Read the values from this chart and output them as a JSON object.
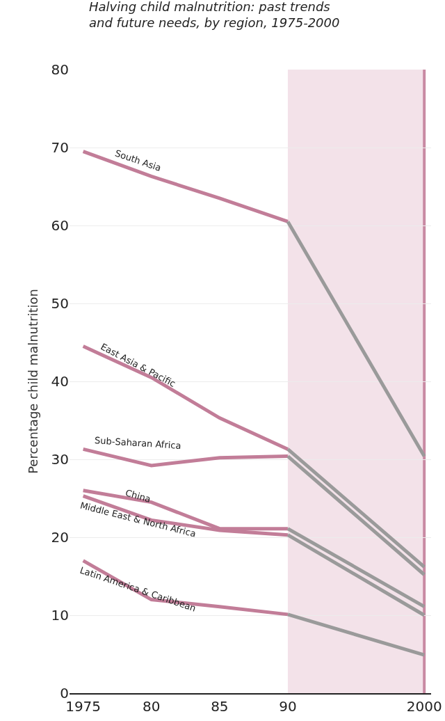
{
  "chart_data": {
    "type": "line",
    "title": "Halving child malnutrition: past trends\nand future needs, by region, 1975-2000",
    "ylabel": "Percentage child malnutrition",
    "xlim": [
      1974,
      2000.5
    ],
    "xticks": [
      1975,
      {
        "value": 1980,
        "label": "80"
      },
      {
        "value": 1985,
        "label": "85"
      },
      {
        "value": 1990,
        "label": "90"
      },
      2000
    ],
    "ylim": [
      0,
      80
    ],
    "yticks": [
      0,
      10,
      20,
      30,
      40,
      50,
      60,
      70,
      80
    ],
    "grid": "y",
    "legend": false,
    "marker": "none",
    "line_style": "solid",
    "bands": [
      {
        "axis": "x",
        "from": 1990,
        "to": 2000,
        "color": "#f3e2e9"
      }
    ],
    "ref_lines": [
      {
        "axis": "x",
        "value": 2000,
        "color": "#c98aa3"
      }
    ],
    "series": [
      {
        "name": "South Asia",
        "color": "#c27d98",
        "x": [
          1975,
          1980,
          1985,
          1990
        ],
        "values": [
          69.5,
          66.3,
          63.5,
          60.5
        ]
      },
      {
        "name": "East Asia & Pacific",
        "color": "#c27d98",
        "x": [
          1975,
          1980,
          1985,
          1990
        ],
        "values": [
          44.5,
          40.5,
          35.3,
          31.3
        ]
      },
      {
        "name": "Sub-Saharan Africa",
        "color": "#c27d98",
        "x": [
          1975,
          1980,
          1985,
          1990
        ],
        "values": [
          31.3,
          29.2,
          30.2,
          30.4
        ]
      },
      {
        "name": "China",
        "color": "#c27d98",
        "x": [
          1975,
          1980,
          1985,
          1990
        ],
        "values": [
          26,
          24.5,
          21.1,
          21.1
        ]
      },
      {
        "name": "Middle East & North Africa",
        "color": "#c27d98",
        "x": [
          1975,
          1980,
          1985,
          1990
        ],
        "values": [
          25.3,
          22.2,
          20.9,
          20.3
        ]
      },
      {
        "name": "Latin America & Caribbean",
        "color": "#c27d98",
        "x": [
          1975,
          1980,
          1985,
          1990
        ],
        "values": [
          17,
          12,
          11.1,
          10.1
        ]
      },
      {
        "color": "#9a9a9a",
        "x": [
          1990,
          2000
        ],
        "values": [
          60.5,
          30.4
        ]
      },
      {
        "color": "#9a9a9a",
        "x": [
          1990,
          2000
        ],
        "values": [
          31.3,
          16.2
        ]
      },
      {
        "color": "#9a9a9a",
        "x": [
          1990,
          2000
        ],
        "values": [
          30.4,
          15.2
        ]
      },
      {
        "color": "#9a9a9a",
        "x": [
          1990,
          2000
        ],
        "values": [
          21.1,
          11.1
        ]
      },
      {
        "color": "#9a9a9a",
        "x": [
          1990,
          2000
        ],
        "values": [
          20.3,
          10
        ]
      },
      {
        "color": "#9a9a9a",
        "x": [
          1990,
          2000
        ],
        "values": [
          10.1,
          4.9
        ]
      }
    ]
  }
}
